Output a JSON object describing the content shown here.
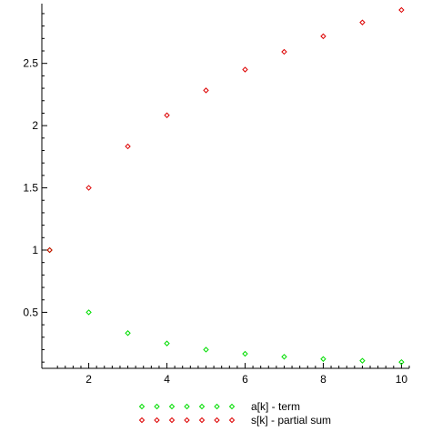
{
  "chart_data": {
    "type": "scatter",
    "title": "",
    "xlabel": "",
    "ylabel": "",
    "xlim": [
      0.8,
      10.2
    ],
    "ylim": [
      0.05,
      2.98
    ],
    "xticks": [
      2,
      4,
      6,
      8,
      10
    ],
    "yticks": [
      0.5,
      1,
      1.5,
      2,
      2.5
    ],
    "ytick_labels": [
      "0.5",
      "1",
      "1.5",
      "2",
      "2.5"
    ],
    "xtick_labels": [
      "2",
      "4",
      "6",
      "8",
      "10"
    ],
    "grid": false,
    "legend_position": "bottom-center",
    "marker": "diamond",
    "x": [
      1,
      2,
      3,
      4,
      5,
      6,
      7,
      8,
      9,
      10
    ],
    "series": [
      {
        "name": "a[k] - term",
        "color": "#00dd00",
        "values": [
          1,
          0.5,
          0.333,
          0.25,
          0.2,
          0.167,
          0.143,
          0.125,
          0.111,
          0.1
        ]
      },
      {
        "name": "s[k] - partial sum",
        "color": "#dd0000",
        "values": [
          1,
          1.5,
          1.833,
          2.083,
          2.283,
          2.45,
          2.593,
          2.718,
          2.829,
          2.929
        ]
      }
    ]
  }
}
